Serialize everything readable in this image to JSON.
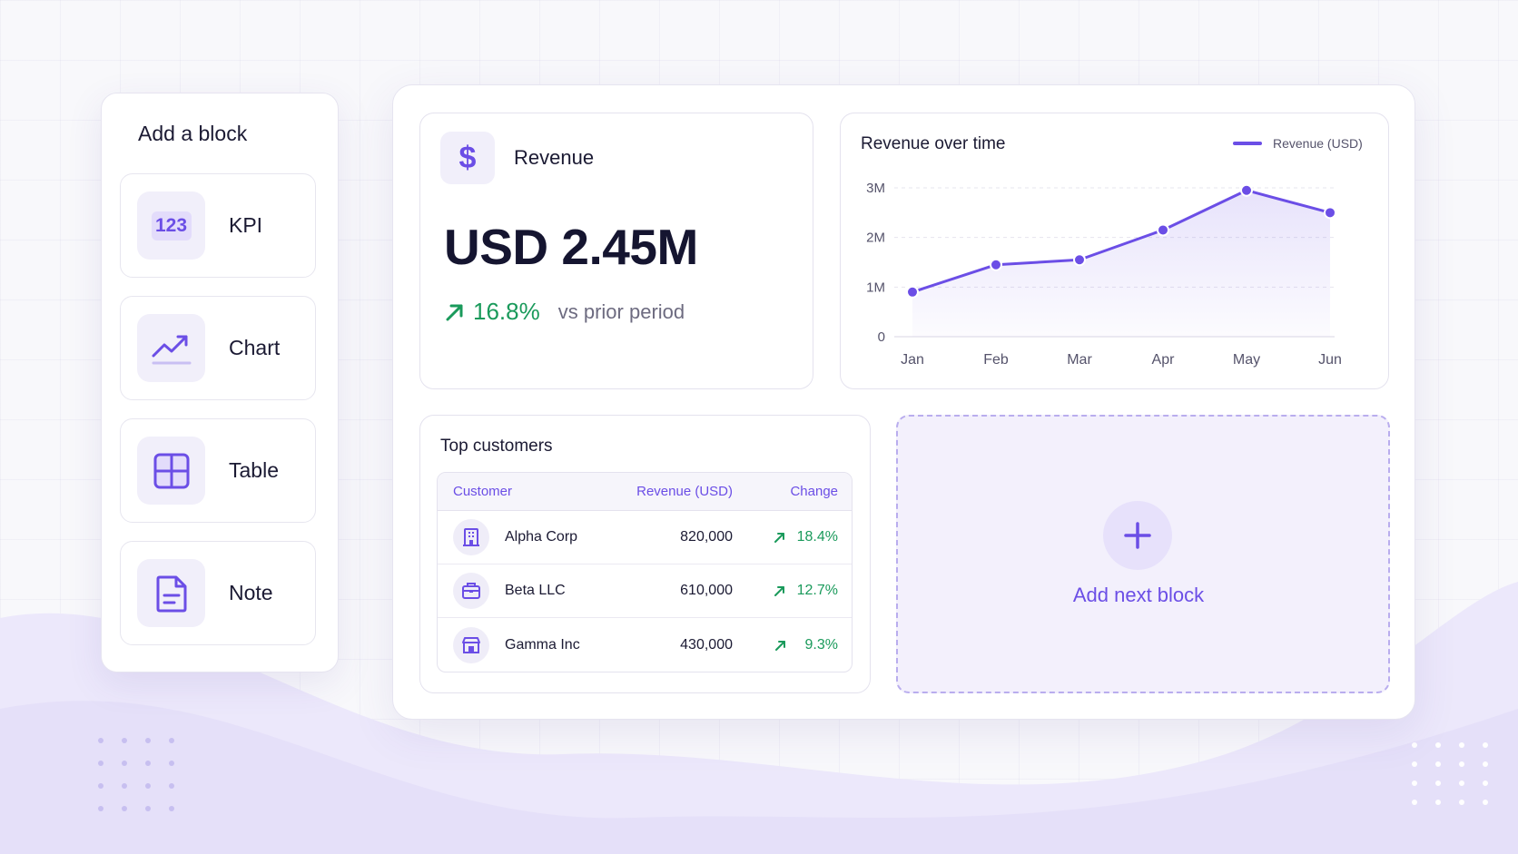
{
  "add_block_panel": {
    "title": "Add a block",
    "items": [
      {
        "label": "KPI",
        "icon": "kpi-icon",
        "chip_text": "123"
      },
      {
        "label": "Chart",
        "icon": "line-chart-icon"
      },
      {
        "label": "Table",
        "icon": "table-grid-icon"
      },
      {
        "label": "Note",
        "icon": "note-document-icon"
      }
    ]
  },
  "kpi_card": {
    "icon": "dollar-icon",
    "icon_text": "$",
    "title": "Revenue",
    "value": "USD 2.45M",
    "change": "16.8%",
    "change_note": "vs prior period"
  },
  "chart_card": {
    "title": "Revenue over time",
    "legend_label": "Revenue (USD)"
  },
  "chart_data": {
    "type": "area",
    "title": "Revenue over time",
    "xlabel": "",
    "ylabel": "",
    "categories": [
      "Jan",
      "Feb",
      "Mar",
      "Apr",
      "May",
      "Jun"
    ],
    "series": [
      {
        "name": "Revenue (USD)",
        "values": [
          0.9,
          1.45,
          1.55,
          2.15,
          2.95,
          2.5
        ]
      }
    ],
    "y_ticks": [
      "0",
      "1M",
      "2M",
      "3M"
    ],
    "ylim": [
      0,
      3
    ],
    "grid": true,
    "legend": "top-right",
    "color": "#6b4ee6"
  },
  "table_card": {
    "title": "Top customers",
    "columns": [
      "Customer",
      "Revenue (USD)",
      "Change"
    ],
    "rows": [
      {
        "customer": "Alpha Corp",
        "revenue": "820,000",
        "change": "18.4%",
        "icon": "building-icon"
      },
      {
        "customer": "Beta LLC",
        "revenue": "610,000",
        "change": "12.7%",
        "icon": "briefcase-icon"
      },
      {
        "customer": "Gamma Inc",
        "revenue": "430,000",
        "change": "9.3%",
        "icon": "storefront-icon"
      }
    ]
  },
  "add_next": {
    "label": "Add next block",
    "icon": "plus-icon"
  },
  "colors": {
    "accent": "#6b4ee6",
    "positive": "#1a9a5b",
    "text": "#1b1a33"
  }
}
